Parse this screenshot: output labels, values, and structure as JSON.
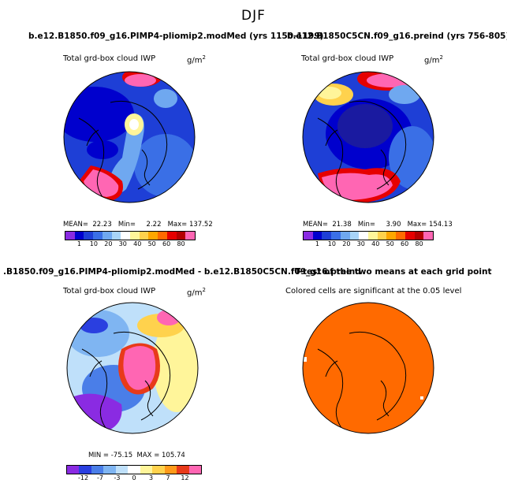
{
  "figure": {
    "title": "DJF"
  },
  "panels": [
    {
      "title": "b.e12.B1850.f09_g16.PIMP4-pliomip2.modMed (yrs 1150-1199)",
      "subtitle": "Total grd-box cloud IWP",
      "units": "g/m",
      "units_exp": "2",
      "stats": "MEAN=  22.23   Min=     2.22   Max= 137.52",
      "colorbar": {
        "ticks": [
          "1",
          "10",
          "20",
          "30",
          "40",
          "50",
          "60",
          "80"
        ],
        "colors": [
          "#8a2be2",
          "#0000cd",
          "#1e3fd6",
          "#3a6fe6",
          "#6fa8f0",
          "#a8d4f7",
          "#ffffff",
          "#fff59a",
          "#ffd24d",
          "#ffa600",
          "#ff6a00",
          "#e60000",
          "#b30000",
          "#ff66b3"
        ]
      }
    },
    {
      "title": "b.e12.B1850C5CN.f09_g16.preind (yrs 756-805)",
      "subtitle": "Total grd-box cloud IWP",
      "units": "g/m",
      "units_exp": "2",
      "stats": "MEAN=  21.38   Min=     3.90   Max= 154.13",
      "colorbar": {
        "ticks": [
          "1",
          "10",
          "20",
          "30",
          "40",
          "50",
          "60",
          "80"
        ],
        "colors": [
          "#8a2be2",
          "#0000cd",
          "#1e3fd6",
          "#3a6fe6",
          "#6fa8f0",
          "#a8d4f7",
          "#ffffff",
          "#fff59a",
          "#ffd24d",
          "#ffa600",
          "#ff6a00",
          "#e60000",
          "#b30000",
          "#ff66b3"
        ]
      }
    },
    {
      "title": ".B1850.f09_g16.PIMP4-pliomip2.modMed - b.e12.B1850C5CN.f09_g16.preind",
      "subtitle": "Total grd-box cloud IWP",
      "units": "g/m",
      "units_exp": "2",
      "stats": "MIN = -75.15  MAX = 105.74",
      "colorbar": {
        "ticks": [
          "-12",
          "-7",
          "-3",
          "0",
          "3",
          "7",
          "12"
        ],
        "colors": [
          "#8a2be2",
          "#2a3fe0",
          "#4a7ee8",
          "#7fb5f2",
          "#bfe0fa",
          "#ffffff",
          "#fff59a",
          "#ffd24d",
          "#ff9a1a",
          "#e83a1a",
          "#ff66b3"
        ]
      }
    },
    {
      "title": "T-test of the two means at each grid point",
      "subtitle": "Colored cells are significant at the 0.05 level"
    }
  ]
}
